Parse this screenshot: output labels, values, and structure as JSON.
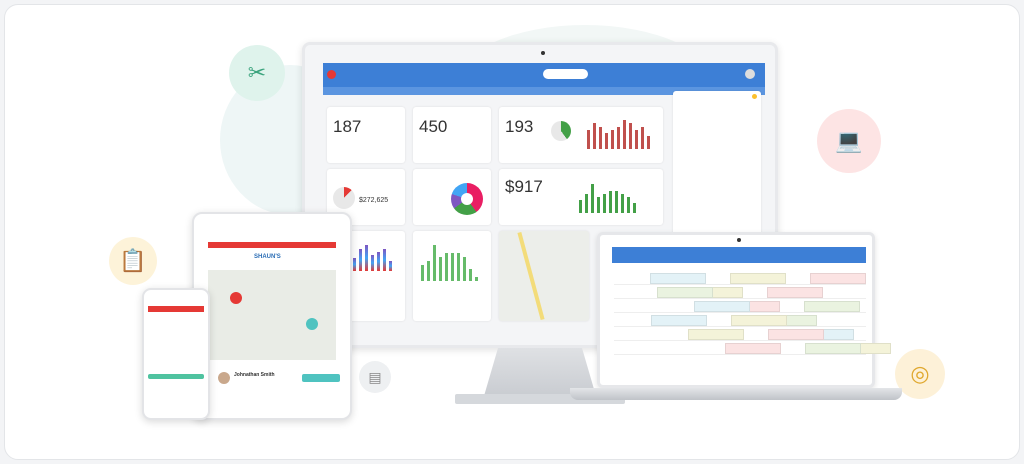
{
  "colors": {
    "brand_blue": "#3d7fd6",
    "accent_green": "#4caf50",
    "accent_red": "#e53935",
    "teal": "#4fc3c0"
  },
  "decor_icons": [
    "tools-icon",
    "clipboard-icon",
    "laptop-gauge-icon",
    "target-icon",
    "document-icon"
  ],
  "monitor": {
    "cards": [
      {
        "value": "187"
      },
      {
        "value": "450"
      },
      {
        "value": "193"
      },
      {
        "value": "$272,625"
      },
      {
        "value": "$917"
      }
    ],
    "charts": {
      "estimates": [
        6,
        8,
        7,
        5,
        6,
        7,
        9,
        8,
        6,
        7,
        4
      ],
      "revenue": [
        4,
        6,
        9,
        5,
        6,
        7,
        7,
        6,
        5,
        3
      ],
      "channels": [
        8,
        6,
        9,
        4,
        7,
        8,
        5,
        6,
        7,
        3
      ],
      "categories": [
        4,
        5,
        9,
        6,
        7,
        7,
        7,
        6,
        3,
        1
      ]
    }
  },
  "tablet": {
    "brand": "SHAUN'S",
    "contact_name": "Johnathan Smith"
  },
  "laptop": {
    "schedule_colors": [
      "#e3f2f7",
      "#f4f3d9",
      "#fbe3e3",
      "#eaf3e0"
    ]
  }
}
